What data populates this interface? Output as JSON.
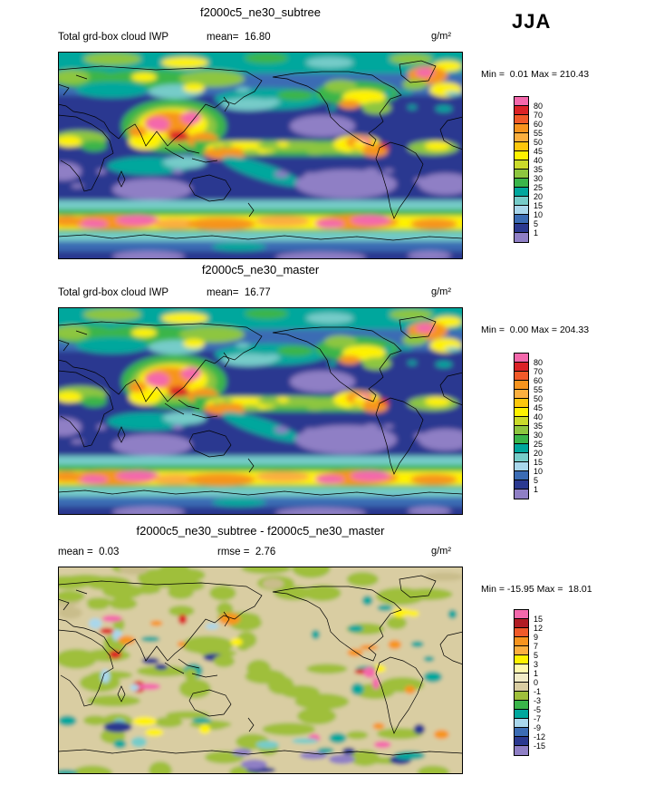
{
  "season_label": "JJA",
  "panels": [
    {
      "title": "f2000c5_ne30_subtree",
      "left_label": "Total grd-box cloud IWP",
      "center_label": "mean=  16.80",
      "units_label": "g/m²",
      "minmax_label": "Min =  0.01 Max = 210.43",
      "colorbar": {
        "labels": [
          "80",
          "70",
          "60",
          "55",
          "50",
          "45",
          "40",
          "35",
          "30",
          "25",
          "20",
          "15",
          "10",
          "5",
          "1"
        ],
        "colors": [
          "#F468AC",
          "#DB2227",
          "#F15A29",
          "#F7941E",
          "#FBAF3F",
          "#FDC70C",
          "#FFF200",
          "#CADB2A",
          "#8DC63F",
          "#3AB54A",
          "#00A79D",
          "#76CCC9",
          "#A9D7EC",
          "#3B6CB4",
          "#2B3990",
          "#8F7FC5"
        ]
      }
    },
    {
      "title": "f2000c5_ne30_master",
      "left_label": "Total grd-box cloud IWP",
      "center_label": "mean=  16.77",
      "units_label": "g/m²",
      "minmax_label": "Min =  0.00 Max = 204.33",
      "colorbar": {
        "labels": [
          "80",
          "70",
          "60",
          "55",
          "50",
          "45",
          "40",
          "35",
          "30",
          "25",
          "20",
          "15",
          "10",
          "5",
          "1"
        ],
        "colors": [
          "#F468AC",
          "#DB2227",
          "#F15A29",
          "#F7941E",
          "#FBAF3F",
          "#FDC70C",
          "#FFF200",
          "#CADB2A",
          "#8DC63F",
          "#3AB54A",
          "#00A79D",
          "#76CCC9",
          "#A9D7EC",
          "#3B6CB4",
          "#2B3990",
          "#8F7FC5"
        ]
      }
    },
    {
      "title": "f2000c5_ne30_subtree - f2000c5_ne30_master",
      "left_label": "mean =  0.03",
      "center_label": "rmse =  2.76",
      "units_label": "g/m²",
      "minmax_label": "Min = -15.95 Max =  18.01",
      "colorbar": {
        "labels": [
          "15",
          "12",
          "9",
          "7",
          "5",
          "3",
          "1",
          "0",
          "-1",
          "-3",
          "-5",
          "-7",
          "-9",
          "-12",
          "-15"
        ],
        "colors": [
          "#F468AC",
          "#B01C24",
          "#F15A29",
          "#F7941E",
          "#FBAF3F",
          "#FFF200",
          "#FFF9AE",
          "#F2ECC8",
          "#D9CDA2",
          "#9FBF3B",
          "#3AB54A",
          "#00A79D",
          "#A9D7EC",
          "#3B6CB4",
          "#2B3990",
          "#8F7FC5"
        ]
      }
    }
  ],
  "chart_data": [
    {
      "type": "heatmap",
      "title": "f2000c5_ne30_subtree",
      "subtitle": "Total grd-box cloud IWP",
      "season": "JJA",
      "units": "g/m²",
      "projection": "global latitude-longitude map (0-360E, 90N-90S)",
      "stats": {
        "mean": 16.8,
        "min": 0.01,
        "max": 210.43
      },
      "contour_levels": [
        1,
        5,
        10,
        15,
        20,
        25,
        30,
        35,
        40,
        45,
        50,
        55,
        60,
        70,
        80
      ],
      "legend_position": "right"
    },
    {
      "type": "heatmap",
      "title": "f2000c5_ne30_master",
      "subtitle": "Total grd-box cloud IWP",
      "season": "JJA",
      "units": "g/m²",
      "projection": "global latitude-longitude map (0-360E, 90N-90S)",
      "stats": {
        "mean": 16.77,
        "min": 0.0,
        "max": 204.33
      },
      "contour_levels": [
        1,
        5,
        10,
        15,
        20,
        25,
        30,
        35,
        40,
        45,
        50,
        55,
        60,
        70,
        80
      ],
      "legend_position": "right"
    },
    {
      "type": "heatmap",
      "title": "f2000c5_ne30_subtree - f2000c5_ne30_master",
      "subtitle": "Difference of total grd-box cloud IWP",
      "season": "JJA",
      "units": "g/m²",
      "projection": "global latitude-longitude map (0-360E, 90N-90S)",
      "stats": {
        "mean": 0.03,
        "rmse": 2.76,
        "min": -15.95,
        "max": 18.01
      },
      "contour_levels": [
        -15,
        -12,
        -9,
        -7,
        -5,
        -3,
        -1,
        0,
        1,
        3,
        5,
        7,
        9,
        12,
        15
      ],
      "legend_position": "right"
    }
  ]
}
